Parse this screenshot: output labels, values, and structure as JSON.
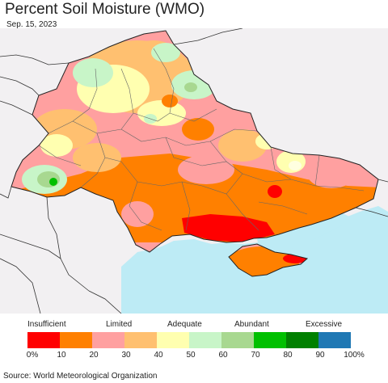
{
  "title": "Percent Soil Moisture (WMO)",
  "date": "Sep. 15, 2023",
  "source": "Source: World Meteorological Organization",
  "colors": {
    "land_outside": "#f2f0f2",
    "sea": "#bdebf5",
    "country_border": "#222222",
    "oblast_border": "#666666"
  },
  "legend": {
    "categories": [
      {
        "label": "Insufficient",
        "color": "#ff0000"
      },
      {
        "label": "Limited",
        "color": "#ff8000"
      },
      {
        "label": "Adequate",
        "color": "#ffffb0"
      },
      {
        "label": "Abundant",
        "color": "#00c000"
      },
      {
        "label": "Excessive",
        "color": "#0080c0"
      }
    ],
    "bins": [
      {
        "range": "0-10",
        "color": "#ff0000"
      },
      {
        "range": "10-20",
        "color": "#ff8000"
      },
      {
        "range": "20-30",
        "color": "#ffa0a0"
      },
      {
        "range": "30-40",
        "color": "#ffc070"
      },
      {
        "range": "40-50",
        "color": "#ffffb0"
      },
      {
        "range": "50-60",
        "color": "#c8f5c8"
      },
      {
        "range": "60-70",
        "color": "#a8d890"
      },
      {
        "range": "70-80",
        "color": "#00c000"
      },
      {
        "range": "80-90",
        "color": "#008000"
      },
      {
        "range": "90-100",
        "color": "#1f78b4"
      }
    ],
    "ticks": [
      "0%",
      "10",
      "20",
      "30",
      "40",
      "50",
      "60",
      "70",
      "80",
      "90",
      "100%"
    ]
  }
}
